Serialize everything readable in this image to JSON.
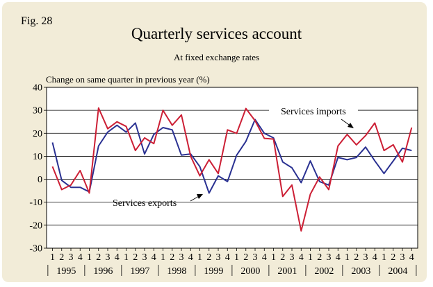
{
  "figure_label": "Fig. 28",
  "chart_data": {
    "type": "line",
    "title": "Quarterly services account",
    "subtitle": "At fixed exchange rates",
    "ylabel": "Change on same quarter in previous year (%)",
    "ylim": [
      -30,
      40
    ],
    "yticks": [
      40,
      30,
      20,
      10,
      0,
      -10,
      -20,
      -30
    ],
    "grid": true,
    "quarter_labels": [
      "1",
      "2",
      "3",
      "4"
    ],
    "years": [
      "1995",
      "1996",
      "1997",
      "1998",
      "1999",
      "2000",
      "2001",
      "2002",
      "2003",
      "2004"
    ],
    "series": [
      {
        "name": "Services imports",
        "color": "#cc1f35",
        "values": [
          5.5,
          -4.5,
          -2.5,
          3.8,
          -6,
          31,
          22,
          25,
          23,
          12.5,
          18,
          15.5,
          30,
          23.5,
          28,
          10,
          1.5,
          8.5,
          2.5,
          21.5,
          20,
          30.8,
          25.5,
          17.8,
          17.5,
          -7.5,
          -2.5,
          -22.5,
          -6.5,
          1,
          -4.5,
          14.5,
          19.5,
          15,
          19,
          24.5,
          12.5,
          15,
          7.5,
          22.5
        ]
      },
      {
        "name": "Services exports",
        "color": "#2a3192",
        "values": [
          16,
          -0.5,
          -3.5,
          -3.5,
          -5.5,
          14.5,
          20.5,
          23.5,
          20.5,
          24.5,
          11,
          19.5,
          22.5,
          21.5,
          10.5,
          11,
          5.5,
          -6,
          1.5,
          -1,
          10.5,
          16.5,
          26,
          20,
          18,
          7.5,
          5,
          -1.5,
          8,
          -1,
          -2.5,
          9.5,
          8.5,
          9.5,
          14,
          8,
          2.5,
          8,
          13.5,
          12.5
        ]
      }
    ],
    "annotations": [
      {
        "text": "Services imports",
        "series": "Services imports"
      },
      {
        "text": "Services exports",
        "series": "Services exports"
      }
    ]
  }
}
